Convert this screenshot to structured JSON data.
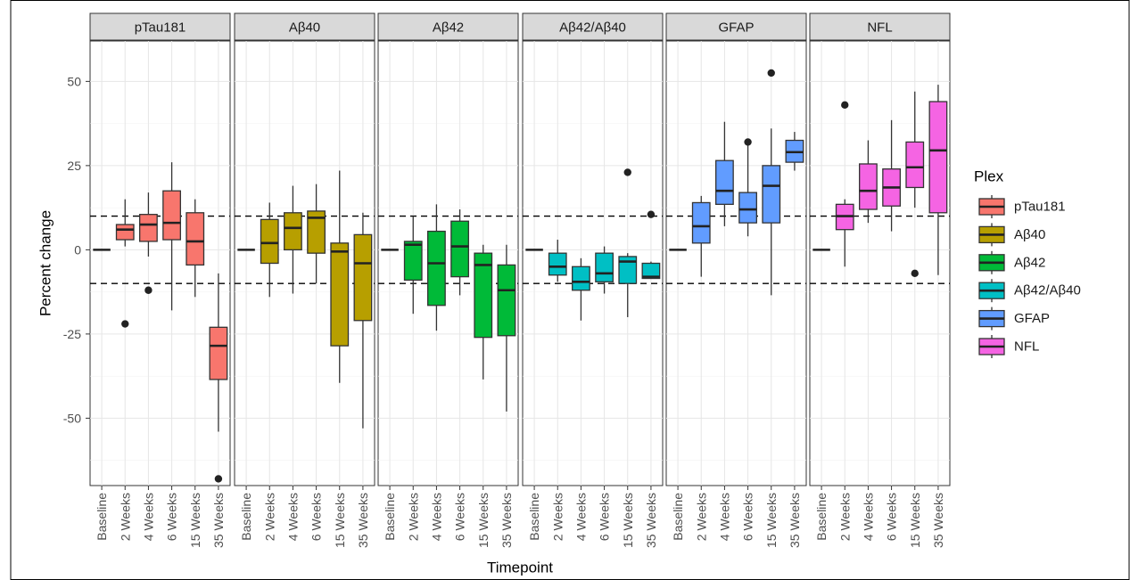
{
  "chart_data": {
    "type": "box",
    "ylabel": "Percent change",
    "xlabel": "Timepoint",
    "ylim": [
      -70,
      62
    ],
    "y_ticks": [
      50,
      25,
      0,
      -25,
      -50
    ],
    "y_tick_labels": [
      "50",
      "25",
      "0",
      "-25",
      "-50"
    ],
    "reference_lines": [
      10,
      -10
    ],
    "categories": [
      "Baseline",
      "2 Weeks",
      "4 Weeks",
      "6 Weeks",
      "15 Weeks",
      "35 Weeks"
    ],
    "grid": true,
    "legend": {
      "title": "Plex",
      "placement": "right",
      "entries": [
        "pTau181",
        "Aβ40",
        "Aβ42",
        "Aβ42/Aβ40",
        "GFAP",
        "NFL"
      ]
    },
    "colors": [
      "#F8766D",
      "#B79F00",
      "#00BA38",
      "#00BFC4",
      "#619CFF",
      "#F564E3"
    ],
    "panels": [
      {
        "name": "pTau181",
        "boxes": [
          {
            "min": 0,
            "q1": 0,
            "median": 0,
            "q3": 0,
            "max": 0,
            "outliers": []
          },
          {
            "min": 1,
            "q1": 3,
            "median": 6,
            "q3": 7.5,
            "max": 15,
            "outliers": [
              -22
            ]
          },
          {
            "min": -2,
            "q1": 2.5,
            "median": 7.5,
            "q3": 10.5,
            "max": 17,
            "outliers": [
              -12
            ]
          },
          {
            "min": -18,
            "q1": 3,
            "median": 8,
            "q3": 17.5,
            "max": 26,
            "outliers": []
          },
          {
            "min": -14,
            "q1": -4.5,
            "median": 2.5,
            "q3": 11,
            "max": 15,
            "outliers": []
          },
          {
            "min": -54,
            "q1": -38.5,
            "median": -28.5,
            "q3": -23,
            "max": -7,
            "outliers": [
              -68
            ]
          }
        ]
      },
      {
        "name": "Aβ40",
        "boxes": [
          {
            "min": 0,
            "q1": 0,
            "median": 0,
            "q3": 0,
            "max": 0,
            "outliers": []
          },
          {
            "min": -14,
            "q1": -4,
            "median": 2,
            "q3": 9,
            "max": 14,
            "outliers": []
          },
          {
            "min": -13,
            "q1": 0,
            "median": 6.5,
            "q3": 11,
            "max": 19,
            "outliers": []
          },
          {
            "min": -10,
            "q1": -1,
            "median": 9.5,
            "q3": 11.5,
            "max": 19.5,
            "outliers": []
          },
          {
            "min": -39.5,
            "q1": -28.5,
            "median": -0.5,
            "q3": 2,
            "max": 23.5,
            "outliers": []
          },
          {
            "min": -53,
            "q1": -21,
            "median": -4,
            "q3": 4.5,
            "max": 11,
            "outliers": []
          }
        ]
      },
      {
        "name": "Aβ42",
        "boxes": [
          {
            "min": 0,
            "q1": 0,
            "median": 0,
            "q3": 0,
            "max": 0,
            "outliers": []
          },
          {
            "min": -19,
            "q1": -9,
            "median": 1.5,
            "q3": 2.5,
            "max": 10,
            "outliers": []
          },
          {
            "min": -24,
            "q1": -16.5,
            "median": -4,
            "q3": 5.5,
            "max": 13.5,
            "outliers": []
          },
          {
            "min": -13.5,
            "q1": -8,
            "median": 1,
            "q3": 8.5,
            "max": 12,
            "outliers": []
          },
          {
            "min": -38.5,
            "q1": -26,
            "median": -4.5,
            "q3": -1,
            "max": 1.5,
            "outliers": []
          },
          {
            "min": -48,
            "q1": -25.5,
            "median": -12,
            "q3": -4.5,
            "max": 1.5,
            "outliers": []
          }
        ]
      },
      {
        "name": "Aβ42/Aβ40",
        "boxes": [
          {
            "min": 0,
            "q1": 0,
            "median": 0,
            "q3": 0,
            "max": 0,
            "outliers": []
          },
          {
            "min": -9.5,
            "q1": -7.5,
            "median": -5,
            "q3": -1,
            "max": 3,
            "outliers": []
          },
          {
            "min": -21,
            "q1": -12,
            "median": -9.5,
            "q3": -5,
            "max": -2.5,
            "outliers": []
          },
          {
            "min": -13,
            "q1": -9.5,
            "median": -7,
            "q3": -1,
            "max": 1,
            "outliers": []
          },
          {
            "min": -20,
            "q1": -10,
            "median": -3.5,
            "q3": -2,
            "max": -1,
            "outliers": [
              23
            ]
          },
          {
            "min": -8.5,
            "q1": -8.5,
            "median": -8,
            "q3": -4,
            "max": -3.5,
            "outliers": [
              10.5
            ]
          }
        ]
      },
      {
        "name": "GFAP",
        "boxes": [
          {
            "min": 0,
            "q1": 0,
            "median": 0,
            "q3": 0,
            "max": 0,
            "outliers": []
          },
          {
            "min": -8,
            "q1": 2,
            "median": 7,
            "q3": 14,
            "max": 16,
            "outliers": []
          },
          {
            "min": 7,
            "q1": 13.5,
            "median": 17.5,
            "q3": 26.5,
            "max": 38,
            "outliers": []
          },
          {
            "min": 4,
            "q1": 8,
            "median": 12,
            "q3": 17,
            "max": 31,
            "outliers": [
              32
            ]
          },
          {
            "min": -13.5,
            "q1": 8,
            "median": 19,
            "q3": 25,
            "max": 36,
            "outliers": [
              52.5
            ]
          },
          {
            "min": 23.5,
            "q1": 26,
            "median": 29,
            "q3": 32.5,
            "max": 35,
            "outliers": []
          }
        ]
      },
      {
        "name": "NFL",
        "boxes": [
          {
            "min": 0,
            "q1": 0,
            "median": 0,
            "q3": 0,
            "max": 0,
            "outliers": []
          },
          {
            "min": -5,
            "q1": 6,
            "median": 10,
            "q3": 13.5,
            "max": 15,
            "outliers": [
              43
            ]
          },
          {
            "min": 8,
            "q1": 12,
            "median": 17.5,
            "q3": 25.5,
            "max": 32.5,
            "outliers": []
          },
          {
            "min": 5.5,
            "q1": 13,
            "median": 18.5,
            "q3": 24,
            "max": 38.5,
            "outliers": []
          },
          {
            "min": 12.5,
            "q1": 18.5,
            "median": 24.5,
            "q3": 32,
            "max": 47,
            "outliers": [
              -7
            ]
          },
          {
            "min": -7.5,
            "q1": 11,
            "median": 29.5,
            "q3": 44,
            "max": 49,
            "outliers": []
          }
        ]
      }
    ]
  }
}
